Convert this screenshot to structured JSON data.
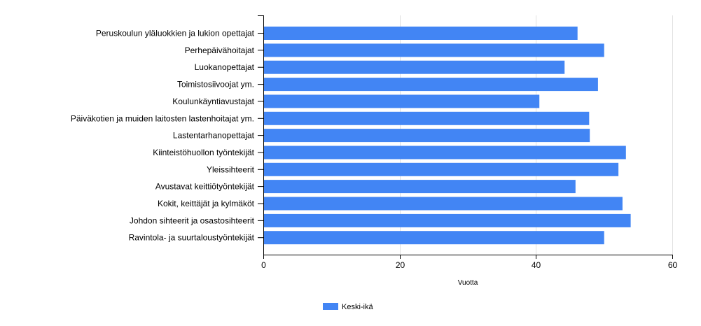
{
  "chart_data": {
    "type": "bar",
    "orientation": "horizontal",
    "categories": [
      "Peruskoulun yläluokkien ja lukion opettajat",
      "Perhepäivähoitajat",
      "Luokanopettajat",
      "Toimistosiivoojat ym.",
      "Koulunkäyntiavustajat",
      "Päiväkotien ja muiden laitosten lastenhoitajat ym.",
      "Lastentarhanopettajat",
      "Kiinteistöhuollon työntekijät",
      "Yleissihteerit",
      "Avustavat keittiötyöntekijät",
      "Kokit, keittäjät ja kylmäköt",
      "Johdon sihteerit ja osastosihteerit",
      "Ravintola- ja suurtaloustyöntekijät"
    ],
    "series": [
      {
        "name": "Keski-ikä",
        "color": "#4285f4",
        "values": [
          46.1,
          50.0,
          44.2,
          49.1,
          40.5,
          47.8,
          47.9,
          53.2,
          52.1,
          45.8,
          52.7,
          53.9,
          50.0
        ]
      }
    ],
    "xlabel": "Vuotta",
    "ylabel": "",
    "xlim": [
      0,
      60
    ],
    "xticks": [
      0,
      20,
      40,
      60
    ],
    "grid": true,
    "legend_position": "bottom-center"
  }
}
